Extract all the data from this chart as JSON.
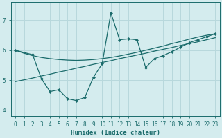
{
  "xlabel": "Humidex (Indice chaleur)",
  "background_color": "#d4ecee",
  "grid_color": "#b8d8dc",
  "line_color": "#1a6b6b",
  "xlim": [
    -0.5,
    23.5
  ],
  "ylim": [
    3.8,
    7.6
  ],
  "xticks": [
    0,
    1,
    2,
    3,
    4,
    5,
    6,
    7,
    8,
    9,
    10,
    11,
    12,
    13,
    14,
    15,
    16,
    17,
    18,
    19,
    20,
    21,
    22,
    23
  ],
  "yticks": [
    4,
    5,
    6,
    7
  ],
  "series1_smooth": {
    "x": [
      0,
      1,
      2,
      3,
      4,
      5,
      6,
      7,
      8,
      9,
      10,
      11,
      12,
      13,
      14,
      15,
      16,
      17,
      18,
      19,
      20,
      21,
      22,
      23
    ],
    "y": [
      6.0,
      5.9,
      5.82,
      5.76,
      5.72,
      5.69,
      5.67,
      5.66,
      5.67,
      5.69,
      5.72,
      5.76,
      5.81,
      5.87,
      5.93,
      6.0,
      6.07,
      6.14,
      6.22,
      6.29,
      6.37,
      6.44,
      6.5,
      6.55
    ]
  },
  "series2_linear": {
    "x": [
      0,
      1,
      2,
      3,
      4,
      5,
      6,
      7,
      8,
      9,
      10,
      11,
      12,
      13,
      14,
      15,
      16,
      17,
      18,
      19,
      20,
      21,
      22,
      23
    ],
    "y": [
      4.95,
      5.01,
      5.07,
      5.14,
      5.2,
      5.27,
      5.33,
      5.4,
      5.46,
      5.53,
      5.59,
      5.65,
      5.72,
      5.78,
      5.84,
      5.9,
      5.97,
      6.03,
      6.09,
      6.16,
      6.22,
      6.28,
      6.35,
      6.42
    ]
  },
  "series3_jagged": {
    "x": [
      0,
      2,
      3,
      4,
      5,
      6,
      7,
      8,
      9,
      10,
      11,
      12,
      13,
      14,
      15,
      16,
      17,
      18,
      19,
      20,
      21,
      22,
      23
    ],
    "y": [
      6.0,
      5.85,
      5.05,
      4.62,
      4.68,
      4.38,
      4.32,
      4.42,
      5.1,
      5.55,
      7.25,
      6.35,
      6.38,
      6.35,
      5.42,
      5.72,
      5.82,
      5.95,
      6.1,
      6.25,
      6.35,
      6.45,
      6.55
    ]
  }
}
